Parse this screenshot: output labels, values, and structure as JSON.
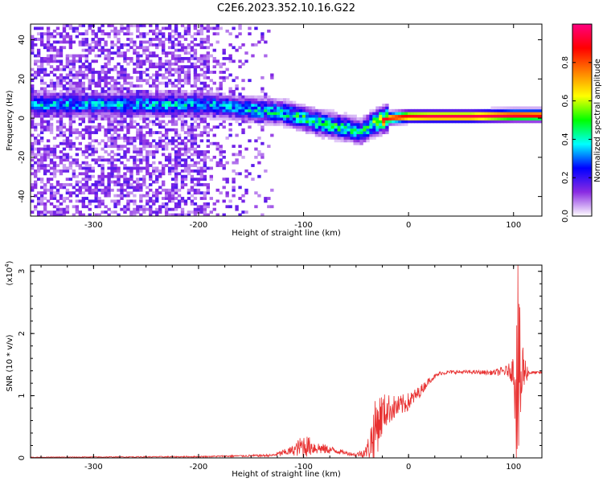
{
  "figure_title": "C2E6.2023.352.10.16.G22",
  "chart_data": [
    {
      "type": "heatmap",
      "panel": "spectrogram",
      "xlabel": "Height of straight line (km)",
      "ylabel": "Frequency (Hz)",
      "xlim": [
        -360,
        127
      ],
      "ylim": [
        -50,
        48
      ],
      "x_ticks": [
        -300,
        -200,
        -100,
        0,
        100
      ],
      "y_ticks": [
        -40,
        -20,
        0,
        20,
        40
      ],
      "colorbar": {
        "label": "Normalized spectral amplitude",
        "range": [
          0,
          1
        ],
        "ticks": [
          "0.0",
          "0.2",
          "0.4",
          "0.6",
          "0.8"
        ],
        "colors": [
          "#ffffff",
          "#8a2be2",
          "#0000ff",
          "#00ffff",
          "#00ff00",
          "#ffff00",
          "#ff8000",
          "#ff0000",
          "#ff0080"
        ]
      },
      "ridge": {
        "x": [
          -190,
          -175,
          -160,
          -140,
          -120,
          -100,
          -80,
          -60,
          -45,
          -35,
          -20,
          0,
          20,
          60,
          100,
          127
        ],
        "y": [
          7,
          6,
          5,
          4,
          3,
          0,
          -3,
          -5,
          -7,
          -3,
          0,
          1,
          1,
          1,
          1.5,
          1.5
        ],
        "peak_amplitude": [
          0.35,
          0.35,
          0.35,
          0.4,
          0.4,
          0.45,
          0.45,
          0.45,
          0.4,
          0.5,
          0.85,
          0.9,
          0.95,
          0.95,
          0.95,
          0.9
        ]
      },
      "noise_region_x": [
        -360,
        -130
      ]
    },
    {
      "type": "line",
      "panel": "snr",
      "xlabel": "Height of straight line (km)",
      "ylabel": "SNR (10 * v/v)",
      "y_multiplier": "(x10",
      "y_multiplier_exp": "4",
      "xlim": [
        -360,
        127
      ],
      "ylim": [
        0,
        3.1
      ],
      "x_ticks": [
        -300,
        -200,
        -100,
        0,
        100
      ],
      "y_ticks": [
        0,
        1,
        2,
        3
      ],
      "color": "#e83030",
      "envelope": {
        "x": [
          -360,
          -200,
          -130,
          -110,
          -100,
          -90,
          -80,
          -70,
          -60,
          -50,
          -40,
          -35,
          -30,
          -25,
          -20,
          -10,
          0,
          10,
          20,
          30,
          40,
          60,
          80,
          95,
          100,
          103,
          105,
          108,
          110,
          115,
          127
        ],
        "mean": [
          0.01,
          0.02,
          0.04,
          0.12,
          0.2,
          0.17,
          0.14,
          0.12,
          0.08,
          0.05,
          0.1,
          0.3,
          0.55,
          0.7,
          0.78,
          0.82,
          0.9,
          1.05,
          1.25,
          1.36,
          1.38,
          1.38,
          1.37,
          1.4,
          1.42,
          1.3,
          1.1,
          1.3,
          1.4,
          1.37,
          1.37
        ],
        "amp": [
          0.005,
          0.01,
          0.02,
          0.08,
          0.2,
          0.12,
          0.08,
          0.05,
          0.03,
          0.03,
          0.1,
          0.4,
          0.5,
          0.35,
          0.25,
          0.18,
          0.15,
          0.1,
          0.05,
          0.03,
          0.03,
          0.03,
          0.04,
          0.1,
          0.25,
          1.7,
          1.4,
          1.0,
          0.3,
          0.03,
          0.02
        ]
      },
      "spike": {
        "x": 104,
        "y": 3.1
      }
    }
  ]
}
